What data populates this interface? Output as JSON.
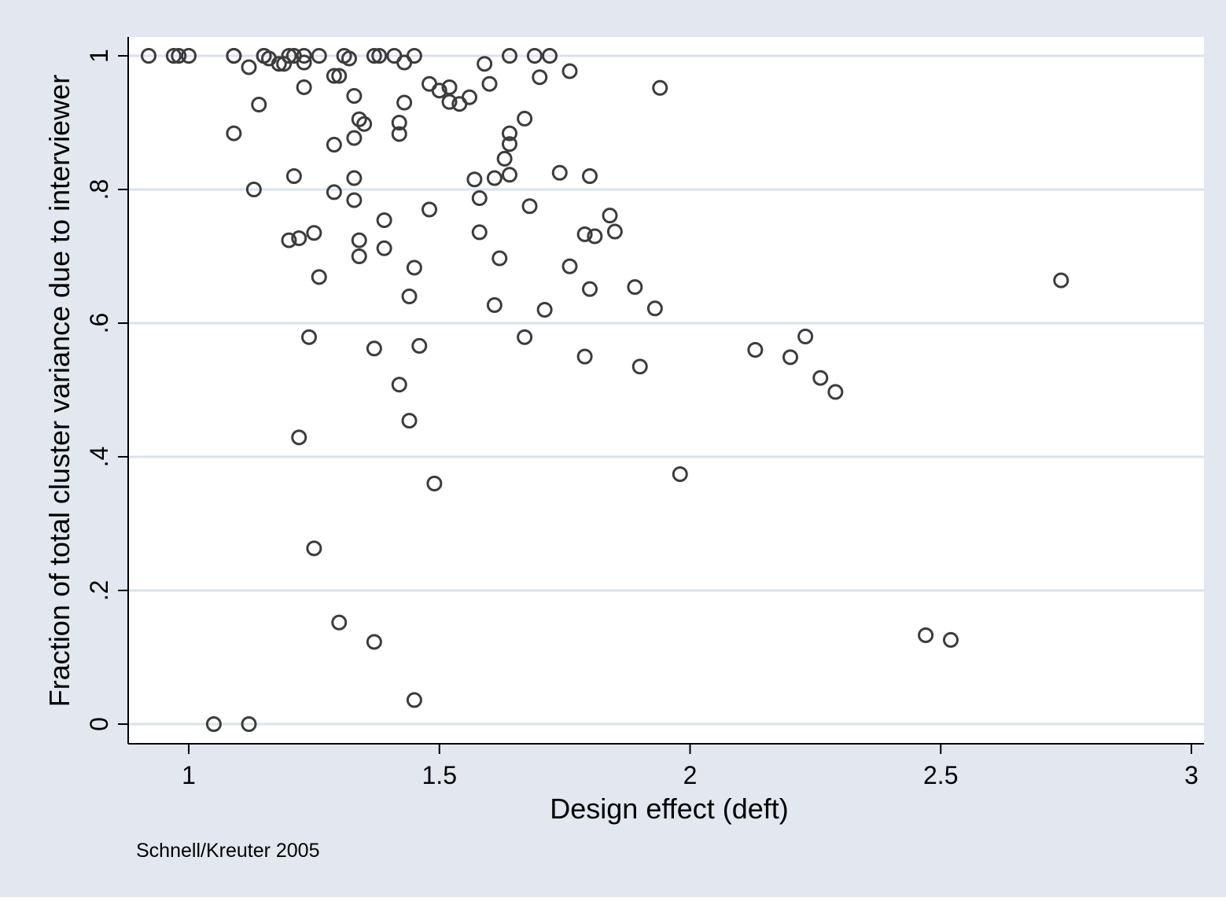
{
  "colors": {
    "outer_background": "#e3e7ef",
    "plot_background": "#ffffff",
    "gridline": "#dbe2ed",
    "marker_stroke": "#3c3c3c",
    "axis": "#000000"
  },
  "chart_data": {
    "type": "scatter",
    "xlabel": "Design effect (deft)",
    "ylabel": "Fraction of total cluster variance due to interviewer",
    "note": "Schnell/Kreuter 2005",
    "xlim": [
      0.9,
      3.02
    ],
    "ylim": [
      -0.03,
      1.03
    ],
    "x_ticks": [
      {
        "value": 1,
        "label": "1"
      },
      {
        "value": 1.5,
        "label": "1.5"
      },
      {
        "value": 2,
        "label": "2"
      },
      {
        "value": 2.5,
        "label": "2.5"
      },
      {
        "value": 3,
        "label": "3"
      }
    ],
    "y_ticks": [
      {
        "value": 0,
        "label": "0"
      },
      {
        "value": 0.2,
        "label": ".2"
      },
      {
        "value": 0.4,
        "label": ".4"
      },
      {
        "value": 0.6,
        "label": ".6"
      },
      {
        "value": 0.8,
        "label": ".8"
      },
      {
        "value": 1,
        "label": "1"
      }
    ],
    "grid": "horizontal",
    "marker": "hollow-circle",
    "points": [
      [
        0.92,
        1.0
      ],
      [
        0.97,
        1.0
      ],
      [
        0.98,
        1.0
      ],
      [
        1.0,
        1.0
      ],
      [
        1.09,
        1.0
      ],
      [
        1.09,
        1.0
      ],
      [
        1.15,
        1.0
      ],
      [
        1.15,
        1.0
      ],
      [
        1.16,
        0.996
      ],
      [
        1.2,
        1.0
      ],
      [
        1.21,
        1.0
      ],
      [
        1.23,
        1.0
      ],
      [
        1.26,
        1.0
      ],
      [
        1.31,
        1.0
      ],
      [
        1.32,
        0.996
      ],
      [
        1.37,
        1.0
      ],
      [
        1.38,
        1.0
      ],
      [
        1.41,
        1.0
      ],
      [
        1.45,
        1.0
      ],
      [
        1.64,
        1.0
      ],
      [
        1.69,
        1.0
      ],
      [
        1.72,
        1.0
      ],
      [
        1.12,
        0.983
      ],
      [
        1.18,
        0.988
      ],
      [
        1.19,
        0.988
      ],
      [
        1.23,
        0.99
      ],
      [
        1.43,
        0.99
      ],
      [
        1.59,
        0.988
      ],
      [
        1.76,
        0.977
      ],
      [
        1.29,
        0.97
      ],
      [
        1.3,
        0.97
      ],
      [
        1.7,
        0.968
      ],
      [
        1.48,
        0.958
      ],
      [
        1.6,
        0.958
      ],
      [
        1.23,
        0.953
      ],
      [
        1.5,
        0.948
      ],
      [
        1.52,
        0.953
      ],
      [
        1.94,
        0.952
      ],
      [
        1.33,
        0.94
      ],
      [
        1.56,
        0.938
      ],
      [
        1.14,
        0.927
      ],
      [
        1.43,
        0.93
      ],
      [
        1.52,
        0.931
      ],
      [
        1.54,
        0.928
      ],
      [
        1.34,
        0.905
      ],
      [
        1.35,
        0.898
      ],
      [
        1.42,
        0.9
      ],
      [
        1.67,
        0.906
      ],
      [
        1.09,
        0.884
      ],
      [
        1.33,
        0.877
      ],
      [
        1.42,
        0.883
      ],
      [
        1.64,
        0.884
      ],
      [
        1.29,
        0.867
      ],
      [
        1.64,
        0.868
      ],
      [
        1.63,
        0.846
      ],
      [
        1.21,
        0.82
      ],
      [
        1.33,
        0.817
      ],
      [
        1.61,
        0.817
      ],
      [
        1.64,
        0.822
      ],
      [
        1.74,
        0.825
      ],
      [
        1.8,
        0.82
      ],
      [
        1.57,
        0.815
      ],
      [
        1.13,
        0.8
      ],
      [
        1.29,
        0.796
      ],
      [
        1.33,
        0.784
      ],
      [
        1.58,
        0.787
      ],
      [
        1.48,
        0.77
      ],
      [
        1.68,
        0.775
      ],
      [
        1.39,
        0.754
      ],
      [
        1.84,
        0.761
      ],
      [
        1.25,
        0.735
      ],
      [
        1.58,
        0.736
      ],
      [
        1.79,
        0.733
      ],
      [
        1.81,
        0.73
      ],
      [
        1.85,
        0.737
      ],
      [
        1.2,
        0.724
      ],
      [
        1.22,
        0.727
      ],
      [
        1.34,
        0.724
      ],
      [
        1.39,
        0.712
      ],
      [
        1.34,
        0.7
      ],
      [
        1.62,
        0.697
      ],
      [
        1.45,
        0.683
      ],
      [
        1.76,
        0.685
      ],
      [
        1.26,
        0.669
      ],
      [
        1.89,
        0.654
      ],
      [
        1.8,
        0.651
      ],
      [
        2.74,
        0.664
      ],
      [
        1.44,
        0.64
      ],
      [
        1.61,
        0.627
      ],
      [
        1.71,
        0.62
      ],
      [
        1.93,
        0.622
      ],
      [
        1.24,
        0.579
      ],
      [
        1.67,
        0.579
      ],
      [
        2.23,
        0.58
      ],
      [
        1.37,
        0.562
      ],
      [
        1.46,
        0.566
      ],
      [
        2.13,
        0.56
      ],
      [
        1.79,
        0.55
      ],
      [
        2.2,
        0.549
      ],
      [
        1.9,
        0.535
      ],
      [
        2.26,
        0.518
      ],
      [
        1.42,
        0.508
      ],
      [
        2.29,
        0.497
      ],
      [
        1.44,
        0.454
      ],
      [
        1.22,
        0.429
      ],
      [
        1.98,
        0.374
      ],
      [
        1.49,
        0.36
      ],
      [
        1.25,
        0.263
      ],
      [
        1.3,
        0.152
      ],
      [
        2.47,
        0.133
      ],
      [
        2.52,
        0.126
      ],
      [
        1.37,
        0.123
      ],
      [
        1.45,
        0.036
      ],
      [
        1.05,
        0.0
      ],
      [
        1.12,
        0.0
      ]
    ]
  }
}
